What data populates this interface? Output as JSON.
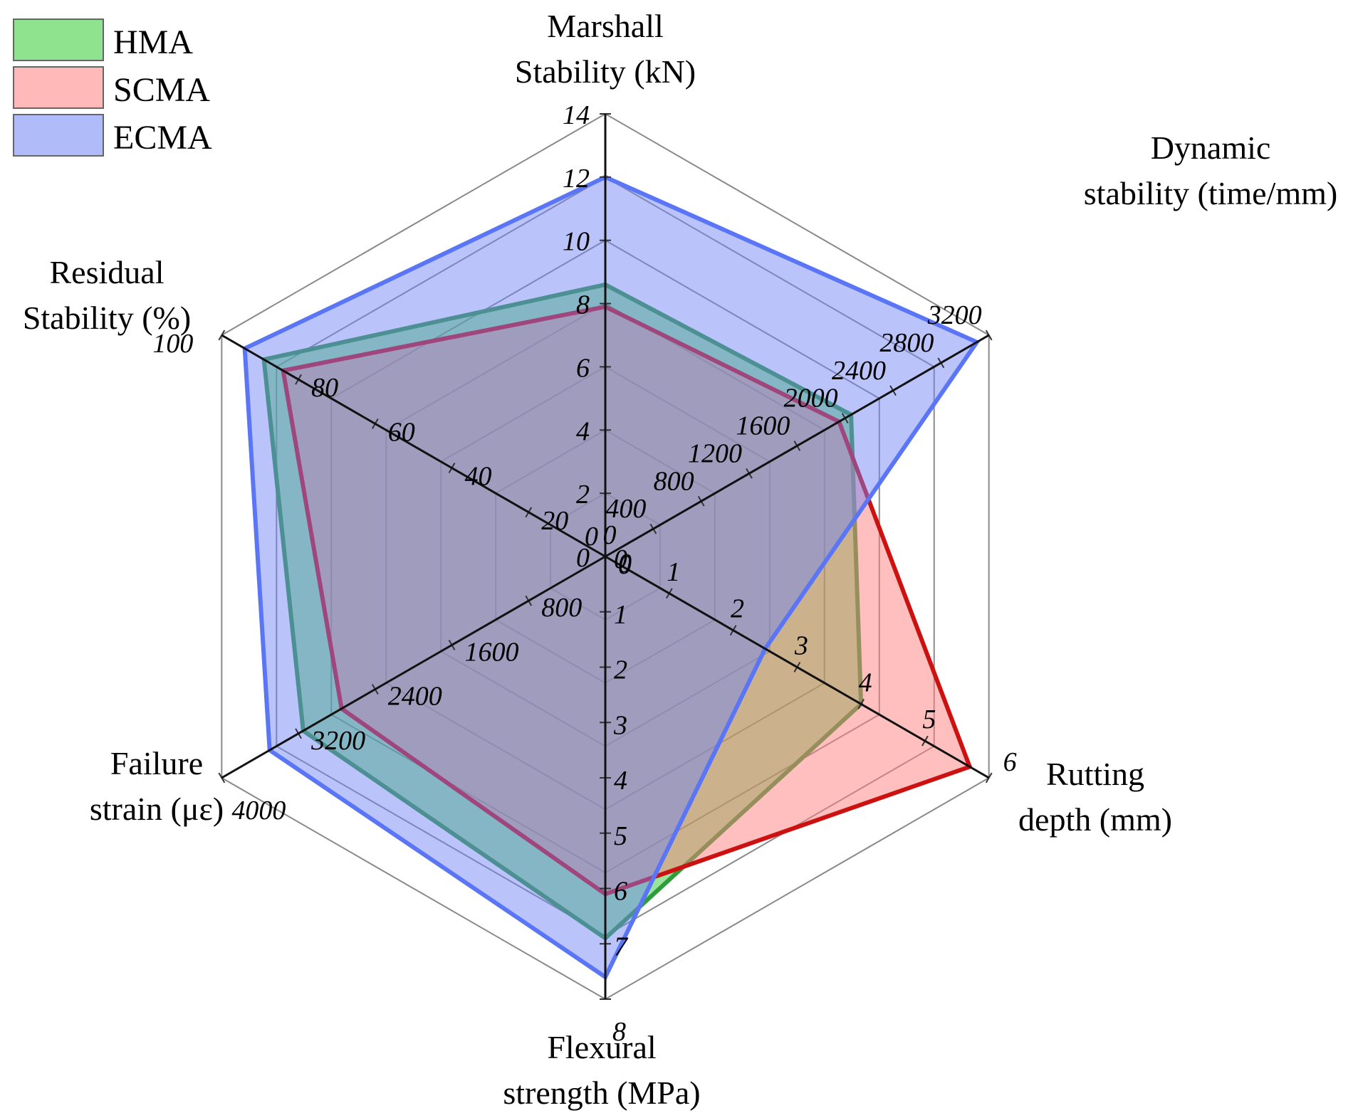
{
  "chart_data": {
    "type": "radar",
    "title": "",
    "axes": [
      {
        "key": "marshall",
        "title_lines": [
          "Marshall",
          "Stability (kN)"
        ],
        "max": 14,
        "ticks": [
          "0",
          "2",
          "4",
          "6",
          "8",
          "10",
          "12",
          "14"
        ]
      },
      {
        "key": "dynamic",
        "title_lines": [
          "Dynamic",
          "stability (time/mm)"
        ],
        "max": 3200,
        "ticks": [
          "0",
          "400",
          "800",
          "1200",
          "1600",
          "2000",
          "2400",
          "2800",
          "3200"
        ]
      },
      {
        "key": "rutting",
        "title_lines": [
          "Rutting",
          "depth (mm)"
        ],
        "max": 6,
        "ticks": [
          "0",
          "1",
          "2",
          "3",
          "4",
          "5",
          "6"
        ]
      },
      {
        "key": "flexural",
        "title_lines": [
          "Flexural",
          "strength (MPa)"
        ],
        "max": 8,
        "ticks": [
          "0",
          "1",
          "2",
          "3",
          "4",
          "5",
          "6",
          "7",
          "8"
        ]
      },
      {
        "key": "failure",
        "title_lines": [
          "Failure",
          "strain (με)"
        ],
        "max": 4000,
        "ticks": [
          "0",
          "800",
          "1600",
          "2400",
          "3200",
          "4000"
        ]
      },
      {
        "key": "residual",
        "title_lines": [
          "Residual",
          "Stability (%)"
        ],
        "max": 100,
        "ticks": [
          "0",
          "20",
          "40",
          "60",
          "80",
          "100"
        ]
      }
    ],
    "series": [
      {
        "name": "HMA",
        "values": [
          8.6,
          2050,
          4.0,
          6.9,
          3150,
          89
        ],
        "fill": "#33cc33",
        "stroke": "#2e9c3a",
        "fill_opacity": 0.5
      },
      {
        "name": "SCMA",
        "values": [
          7.9,
          1950,
          5.7,
          6.1,
          2750,
          84
        ],
        "fill": "#ff8080",
        "stroke": "#cc1111",
        "fill_opacity": 0.5
      },
      {
        "name": "ECMA",
        "values": [
          12.0,
          3100,
          2.5,
          7.6,
          3500,
          94
        ],
        "fill": "#6f84f5",
        "stroke": "#5a75f5",
        "fill_opacity": 0.48
      }
    ],
    "legend": {
      "position": "top-left"
    },
    "grid": true
  }
}
